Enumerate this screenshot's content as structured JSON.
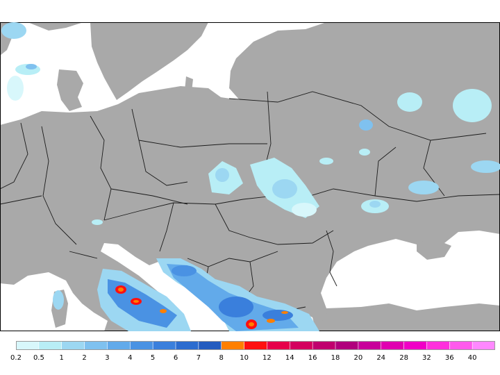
{
  "colors": {
    "sea": "#ffffff",
    "land": "#a9a9a9",
    "border": "#1a1a1a",
    "frame": "#000000"
  },
  "legend": {
    "bins": [
      {
        "label": "0.2",
        "color": "#d8f7fb"
      },
      {
        "label": "0.5",
        "color": "#b8eef6"
      },
      {
        "label": "1",
        "color": "#9cd7f2"
      },
      {
        "label": "2",
        "color": "#7fc1ef"
      },
      {
        "label": "3",
        "color": "#62aaea"
      },
      {
        "label": "4",
        "color": "#4a92e3"
      },
      {
        "label": "5",
        "color": "#3a7fdc"
      },
      {
        "label": "6",
        "color": "#2c6ccf"
      },
      {
        "label": "7",
        "color": "#245cbf"
      },
      {
        "label": "8",
        "color": "#ff7f00"
      },
      {
        "label": "10",
        "color": "#ff1010"
      },
      {
        "label": "12",
        "color": "#e6004a"
      },
      {
        "label": "14",
        "color": "#d4005e"
      },
      {
        "label": "16",
        "color": "#c0006e"
      },
      {
        "label": "18",
        "color": "#b0007c"
      },
      {
        "label": "20",
        "color": "#c8009a"
      },
      {
        "label": "24",
        "color": "#e000b0"
      },
      {
        "label": "28",
        "color": "#f000c6"
      },
      {
        "label": "32",
        "color": "#ff30dc"
      },
      {
        "label": "36",
        "color": "#ff5aec"
      },
      {
        "label": "40",
        "color": "#ff88ff"
      }
    ]
  }
}
